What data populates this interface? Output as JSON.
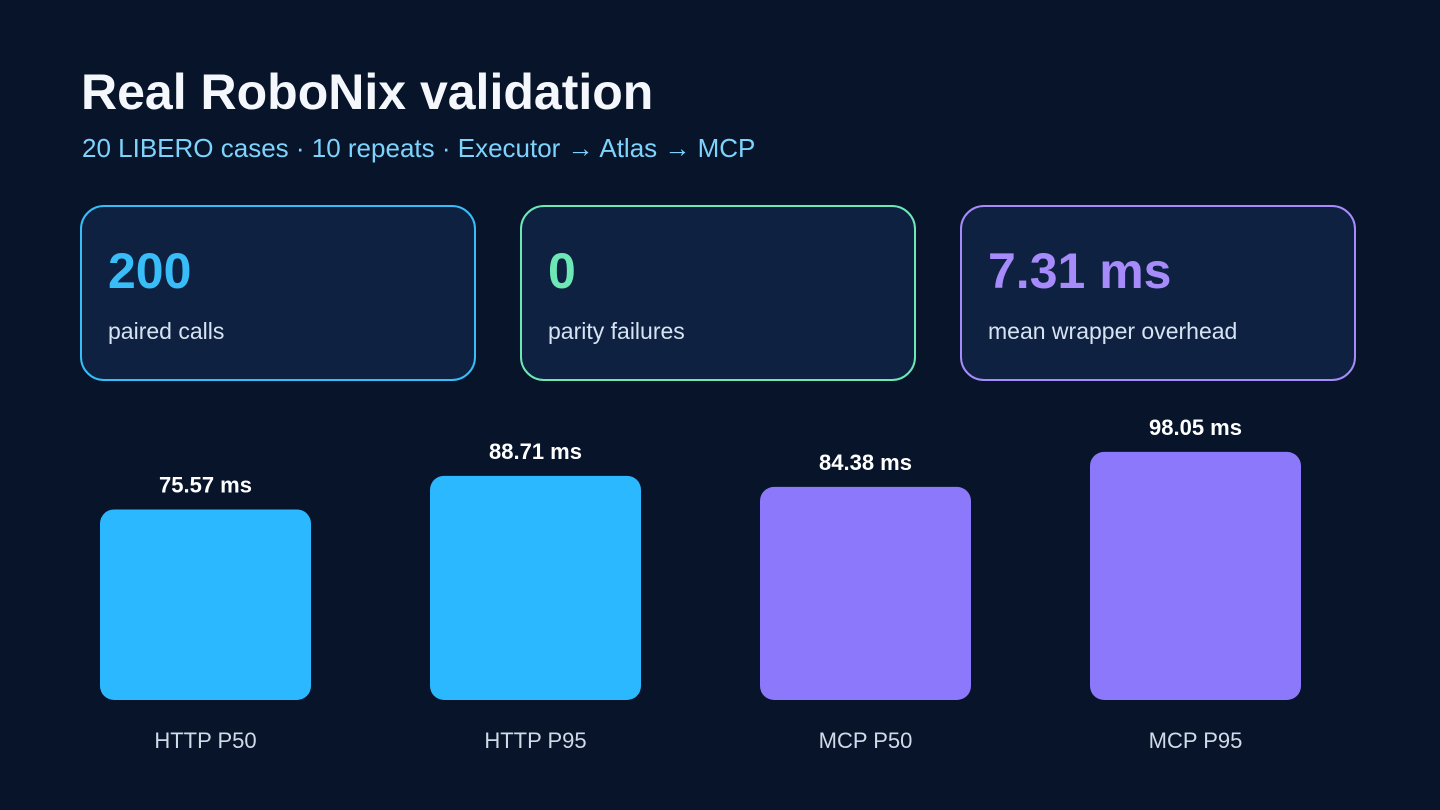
{
  "header": {
    "title": "Real RoboNix validation",
    "subtitle": "20 LIBERO cases · 10 repeats · Executor → Atlas → MCP"
  },
  "stats": [
    {
      "value": "200",
      "label": "paired calls",
      "color": "#38bdf8"
    },
    {
      "value": "0",
      "label": "parity failures",
      "color": "#6ee7b7"
    },
    {
      "value": "7.31 ms",
      "label": "mean wrapper overhead",
      "color": "#a78bfa"
    }
  ],
  "chart_data": {
    "type": "bar",
    "categories": [
      "HTTP P50",
      "HTTP P95",
      "MCP P50",
      "MCP P95"
    ],
    "values": [
      75.57,
      88.71,
      84.38,
      98.05
    ],
    "value_labels": [
      "75.57 ms",
      "88.71 ms",
      "84.38 ms",
      "98.05 ms"
    ],
    "bar_colors": [
      "#2bb8ff",
      "#2bb8ff",
      "#8b78fa",
      "#8b78fa"
    ],
    "title": "",
    "xlabel": "",
    "ylabel": "",
    "ylim": [
      0,
      100
    ],
    "grid": false
  }
}
